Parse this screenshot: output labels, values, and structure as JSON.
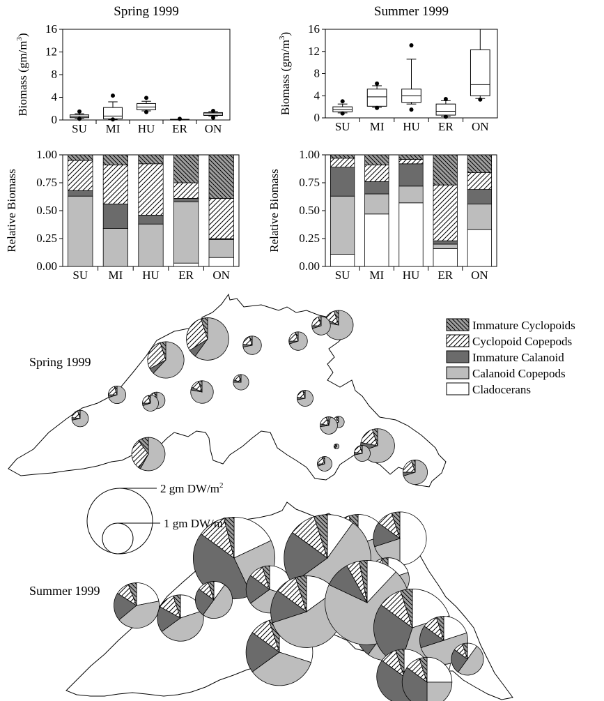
{
  "styles": {
    "Immature Cyclopoids": "hatch-cross",
    "Cyclopoid Copepods": "hatch-diag",
    "Immature Calanoid": "#6b6b6b",
    "Calanoid Copepods": "#bdbdbd",
    "Cladocerans": "#ffffff"
  },
  "legend": [
    "Immature Cyclopoids",
    "Cyclopoid Copepods",
    "Immature Calanoid",
    "Calanoid Copepods",
    "Cladocerans"
  ],
  "map_labels": {
    "spring": "Spring 1999",
    "summer": "Summer 1999"
  },
  "size_key": {
    "large": "2 gm DW/m",
    "small": "1 gm DW/m",
    "sup": "2"
  },
  "chart_data": [
    {
      "type": "box",
      "title": "Spring 1999",
      "ylabel": "Biomass (gm/m",
      "ylabel_sup": "3",
      "ylabel_end": ")",
      "ylim": [
        0,
        16
      ],
      "yticks": [
        "0",
        "4",
        "8",
        "12",
        "16"
      ],
      "categories": [
        "SU",
        "MI",
        "HU",
        "ER",
        "ON"
      ],
      "boxes": [
        {
          "q1": 0.4,
          "median": 0.6,
          "q3": 0.9,
          "whisker_low": 0.3,
          "whisker_high": 1.1,
          "outliers": [
            1.5,
            0.2
          ]
        },
        {
          "q1": 0.2,
          "median": 0.7,
          "q3": 2.2,
          "whisker_low": 0.1,
          "whisker_high": 3.2,
          "outliers": [
            4.3,
            0.1
          ]
        },
        {
          "q1": 1.8,
          "median": 2.3,
          "q3": 2.9,
          "whisker_low": 1.6,
          "whisker_high": 3.3,
          "outliers": [
            3.9,
            1.4
          ]
        },
        {
          "q1": 0.05,
          "median": 0.08,
          "q3": 0.12,
          "whisker_low": 0.05,
          "whisker_high": 0.12,
          "outliers": [
            0.2
          ]
        },
        {
          "q1": 0.8,
          "median": 1.1,
          "q3": 1.3,
          "whisker_low": 0.7,
          "whisker_high": 1.5,
          "outliers": [
            1.6,
            0.4
          ]
        }
      ]
    },
    {
      "type": "box",
      "title": "Summer 1999",
      "ylabel": "Biomass (gm/m",
      "ylabel_sup": "3",
      "ylabel_end": ")",
      "ylim": [
        0,
        16
      ],
      "yticks": [
        "0",
        "4",
        "8",
        "12",
        "16"
      ],
      "categories": [
        "SU",
        "MI",
        "HU",
        "ER",
        "ON"
      ],
      "boxes": [
        {
          "q1": 1.1,
          "median": 1.5,
          "q3": 2.0,
          "whisker_low": 0.9,
          "whisker_high": 2.5,
          "outliers": [
            3.0,
            0.8
          ]
        },
        {
          "q1": 2.1,
          "median": 3.8,
          "q3": 5.2,
          "whisker_low": 1.9,
          "whisker_high": 5.8,
          "outliers": [
            6.2,
            1.8
          ]
        },
        {
          "q1": 2.8,
          "median": 4.0,
          "q3": 5.2,
          "whisker_low": 2.5,
          "whisker_high": 10.6,
          "outliers": [
            13.1,
            1.5
          ]
        },
        {
          "q1": 0.5,
          "median": 1.2,
          "q3": 2.5,
          "whisker_low": 0.3,
          "whisker_high": 3.1,
          "outliers": [
            3.4,
            0.2
          ]
        },
        {
          "q1": 4.0,
          "median": 6.0,
          "q3": 12.3,
          "whisker_low": 3.5,
          "whisker_high": 16.0,
          "outliers": [
            3.3
          ]
        }
      ]
    },
    {
      "type": "bar",
      "stacked": true,
      "ylabel": "Relative Biomass",
      "ylim": [
        0,
        1
      ],
      "yticks": [
        "0.00",
        "0.25",
        "0.50",
        "0.75",
        "1.00"
      ],
      "categories": [
        "SU",
        "MI",
        "HU",
        "ER",
        "ON"
      ],
      "series": [
        {
          "name": "Cladocerans",
          "values": [
            0.0,
            0.0,
            0.0,
            0.03,
            0.08
          ]
        },
        {
          "name": "Calanoid Copepods",
          "values": [
            0.63,
            0.34,
            0.38,
            0.55,
            0.16
          ]
        },
        {
          "name": "Immature Calanoid",
          "values": [
            0.05,
            0.22,
            0.08,
            0.03,
            0.01
          ]
        },
        {
          "name": "Cyclopoid Copepods",
          "values": [
            0.27,
            0.35,
            0.46,
            0.14,
            0.36
          ]
        },
        {
          "name": "Immature Cyclopoids",
          "values": [
            0.05,
            0.09,
            0.08,
            0.25,
            0.39
          ]
        }
      ]
    },
    {
      "type": "bar",
      "stacked": true,
      "ylabel": "Relative Biomass",
      "ylim": [
        0,
        1
      ],
      "yticks": [
        "0.00",
        "0.25",
        "0.50",
        "0.75",
        "1.00"
      ],
      "categories": [
        "SU",
        "MI",
        "HU",
        "ER",
        "ON"
      ],
      "series": [
        {
          "name": "Cladocerans",
          "values": [
            0.11,
            0.47,
            0.57,
            0.16,
            0.33
          ]
        },
        {
          "name": "Calanoid Copepods",
          "values": [
            0.52,
            0.18,
            0.15,
            0.04,
            0.23
          ]
        },
        {
          "name": "Immature Calanoid",
          "values": [
            0.26,
            0.11,
            0.2,
            0.03,
            0.13
          ]
        },
        {
          "name": "Cyclopoid Copepods",
          "values": [
            0.08,
            0.15,
            0.04,
            0.5,
            0.15
          ]
        },
        {
          "name": "Immature Cyclopoids",
          "values": [
            0.03,
            0.09,
            0.04,
            0.27,
            0.16
          ]
        }
      ]
    },
    {
      "type": "pie-map",
      "season": "Spring 1999",
      "order": [
        "Cladocerans",
        "Calanoid Copepods",
        "Immature Calanoid",
        "Cyclopoid Copepods",
        "Immature Cyclopoids"
      ],
      "stations": [
        {
          "biomass": 0.32,
          "values": [
            0,
            0.72,
            0.05,
            0.18,
            0.05
          ]
        },
        {
          "biomass": 0.36,
          "values": [
            0,
            0.7,
            0.05,
            0.2,
            0.05
          ]
        },
        {
          "biomass": 1.55,
          "values": [
            0,
            0.62,
            0.05,
            0.28,
            0.05
          ]
        },
        {
          "biomass": 2.1,
          "values": [
            0,
            0.6,
            0.06,
            0.29,
            0.05
          ]
        },
        {
          "biomass": 0.32,
          "values": [
            0,
            0.72,
            0.05,
            0.18,
            0.05
          ]
        },
        {
          "biomass": 1.3,
          "values": [
            0,
            0.58,
            0.02,
            0.3,
            0.1
          ]
        },
        {
          "biomass": 0.6,
          "values": [
            0,
            0.78,
            0.04,
            0.13,
            0.05
          ]
        },
        {
          "biomass": 0.28,
          "values": [
            0,
            0.75,
            0.05,
            0.15,
            0.05
          ]
        },
        {
          "biomass": 0.4,
          "values": [
            0,
            0.72,
            0.05,
            0.18,
            0.05
          ]
        },
        {
          "biomass": 0.4,
          "values": [
            0,
            0.7,
            0.05,
            0.2,
            0.05
          ]
        },
        {
          "biomass": 1.0,
          "values": [
            0,
            0.78,
            0.04,
            0.13,
            0.05
          ]
        },
        {
          "biomass": 0.4,
          "values": [
            0,
            0.7,
            0.05,
            0.2,
            0.05
          ]
        },
        {
          "biomass": 0.15,
          "values": [
            0,
            0.65,
            0.05,
            0.22,
            0.08
          ]
        },
        {
          "biomass": 0.3,
          "values": [
            0,
            0.72,
            0.05,
            0.18,
            0.05
          ]
        },
        {
          "biomass": 0.35,
          "values": [
            0.03,
            0.7,
            0.05,
            0.17,
            0.05
          ]
        },
        {
          "biomass": 0.03,
          "values": [
            0,
            0.6,
            0.1,
            0.2,
            0.1
          ]
        },
        {
          "biomass": 1.35,
          "values": [
            0,
            0.7,
            0.08,
            0.17,
            0.05
          ]
        },
        {
          "biomass": 0.25,
          "values": [
            0,
            0.7,
            0.05,
            0.2,
            0.05
          ]
        },
        {
          "biomass": 0.3,
          "values": [
            0,
            0.72,
            0.05,
            0.18,
            0.05
          ]
        },
        {
          "biomass": 0.7,
          "values": [
            0,
            0.7,
            0.05,
            0.2,
            0.05
          ]
        },
        {
          "biomass": 0.3,
          "values": [
            0,
            0.7,
            0.05,
            0.2,
            0.05
          ]
        }
      ]
    },
    {
      "type": "pie-map",
      "season": "Summer 1999",
      "order": [
        "Cladocerans",
        "Calanoid Copepods",
        "Immature Calanoid",
        "Cyclopoid Copepods",
        "Immature Cyclopoids"
      ],
      "stations": [
        {
          "biomass": 2.4,
          "values": [
            0.22,
            0.42,
            0.2,
            0.1,
            0.06
          ]
        },
        {
          "biomass": 2.5,
          "values": [
            0.2,
            0.45,
            0.18,
            0.12,
            0.05
          ]
        },
        {
          "biomass": 7.8,
          "values": [
            0.18,
            0.25,
            0.42,
            0.11,
            0.04
          ]
        },
        {
          "biomass": 1.6,
          "values": [
            0.1,
            0.5,
            0.25,
            0.1,
            0.05
          ]
        },
        {
          "biomass": 5.2,
          "values": [
            0.3,
            0.35,
            0.2,
            0.1,
            0.05
          ]
        },
        {
          "biomass": 5.9,
          "values": [
            0.25,
            0.4,
            0.2,
            0.1,
            0.05
          ]
        },
        {
          "biomass": 4.1,
          "values": [
            0.2,
            0.5,
            0.15,
            0.1,
            0.05
          ]
        },
        {
          "biomass": 2.6,
          "values": [
            0.3,
            0.35,
            0.2,
            0.1,
            0.05
          ]
        },
        {
          "biomass": 8.8,
          "values": [
            0.1,
            0.55,
            0.2,
            0.1,
            0.05
          ]
        },
        {
          "biomass": 6.0,
          "values": [
            0.15,
            0.55,
            0.15,
            0.1,
            0.05
          ]
        },
        {
          "biomass": 3.3,
          "values": [
            0.5,
            0.2,
            0.15,
            0.1,
            0.05
          ]
        },
        {
          "biomass": 2.1,
          "values": [
            0.2,
            0.5,
            0.15,
            0.1,
            0.05
          ]
        },
        {
          "biomass": 4.6,
          "values": [
            0.1,
            0.5,
            0.25,
            0.1,
            0.05
          ]
        },
        {
          "biomass": 1.5,
          "values": [
            0.1,
            0.55,
            0.2,
            0.1,
            0.05
          ]
        },
        {
          "biomass": 8.3,
          "values": [
            0.12,
            0.7,
            0.1,
            0.05,
            0.03
          ]
        },
        {
          "biomass": 4.1,
          "values": [
            0.45,
            0.3,
            0.12,
            0.08,
            0.05
          ]
        },
        {
          "biomass": 7.0,
          "values": [
            0.2,
            0.35,
            0.3,
            0.1,
            0.05
          ]
        },
        {
          "biomass": 2.7,
          "values": [
            0.2,
            0.5,
            0.15,
            0.1,
            0.05
          ]
        },
        {
          "biomass": 3.5,
          "values": [
            0.2,
            0.1,
            0.55,
            0.1,
            0.05
          ]
        },
        {
          "biomass": 2.9,
          "values": [
            0.25,
            0.25,
            0.35,
            0.1,
            0.05
          ]
        },
        {
          "biomass": 1.2,
          "values": [
            0.1,
            0.5,
            0.25,
            0.1,
            0.05
          ]
        }
      ]
    }
  ]
}
